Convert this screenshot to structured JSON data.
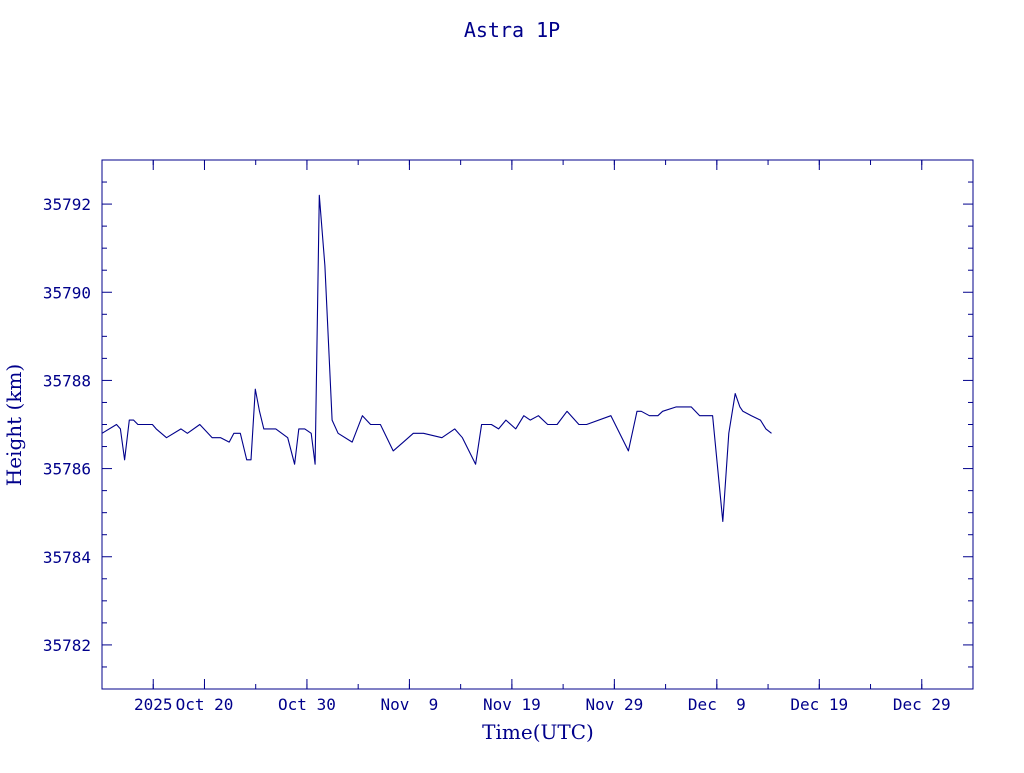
{
  "chart_data": {
    "type": "line",
    "title": "Astra 1P",
    "xlabel": "Time(UTC)",
    "ylabel": "Height (km)",
    "xlim": [
      "2025-10-10",
      "2026-01-03"
    ],
    "ylim": [
      35781,
      35793
    ],
    "grid": false,
    "y_ticks": [
      35782,
      35784,
      35786,
      35788,
      35790,
      35792
    ],
    "y_tick_labels": [
      "35782",
      "35784",
      "35786",
      "35788",
      "35790",
      "35792"
    ],
    "x_ticks": [
      "2025-10-15",
      "2025-10-20",
      "2025-10-30",
      "2025-11-09",
      "2025-11-19",
      "2025-11-29",
      "2025-12-09",
      "2025-12-19",
      "2025-12-29"
    ],
    "x_tick_labels": [
      "2025",
      "Oct 20",
      "Oct 30",
      "Nov  9",
      "Nov 19",
      "Nov 29",
      "Dec  9",
      "Dec 19",
      "Dec 29"
    ],
    "series": [
      {
        "color": "#00008b",
        "x": [
          "2025-10-10T00:00",
          "2025-10-11T10:00",
          "2025-10-11T19:00",
          "2025-10-12T05:00",
          "2025-10-12T16:00",
          "2025-10-13T02:00",
          "2025-10-13T12:00",
          "2025-10-14T22:00",
          "2025-10-15T07:00",
          "2025-10-16T07:00",
          "2025-10-17T17:00",
          "2025-10-18T08:00",
          "2025-10-19T13:00",
          "2025-10-20T18:00",
          "2025-10-21T14:00",
          "2025-10-22T10:00",
          "2025-10-22T21:00",
          "2025-10-23T12:00",
          "2025-10-24T03:00",
          "2025-10-24T13:00",
          "2025-10-24T23:00",
          "2025-10-25T09:00",
          "2025-10-25T19:00",
          "2025-10-26T09:00",
          "2025-10-26T23:00",
          "2025-10-28T03:00",
          "2025-10-28T19:00",
          "2025-10-29T05:00",
          "2025-10-29T19:00",
          "2025-10-30T10:00",
          "2025-10-30T19:00",
          "2025-10-31T05:00",
          "2025-10-31T18:00",
          "2025-11-01T11:00",
          "2025-11-02T01:00",
          "2025-11-03T10:00",
          "2025-11-04T10:00",
          "2025-11-05T05:00",
          "2025-11-06T04:00",
          "2025-11-07T10:00",
          "2025-11-08T10:00",
          "2025-11-09T09:00",
          "2025-11-10T09:00",
          "2025-11-12T04:00",
          "2025-11-13T10:00",
          "2025-11-14T04:00",
          "2025-11-15T11:00",
          "2025-11-16T01:00",
          "2025-11-17T00:00",
          "2025-11-17T17:00",
          "2025-11-18T10:00",
          "2025-11-19T09:00",
          "2025-11-20T04:00",
          "2025-11-20T19:00",
          "2025-11-21T14:00",
          "2025-11-22T12:00",
          "2025-11-23T10:00",
          "2025-11-24T09:00",
          "2025-11-25T13:00",
          "2025-11-26T07:00",
          "2025-11-28T16:00",
          "2025-11-30T09:00",
          "2025-12-01T05:00",
          "2025-12-01T15:00",
          "2025-12-02T10:00",
          "2025-12-03T06:00",
          "2025-12-03T17:00",
          "2025-12-05T01:00",
          "2025-12-06T12:00",
          "2025-12-07T08:00",
          "2025-12-08T14:00",
          "2025-12-09T14:00",
          "2025-12-10T04:00",
          "2025-12-10T19:00",
          "2025-12-11T06:00",
          "2025-12-11T13:00",
          "2025-12-12T09:00",
          "2025-12-13T06:00",
          "2025-12-13T19:00",
          "2025-12-14T08:00"
        ],
        "values": [
          35786.8,
          35787.0,
          35786.9,
          35786.2,
          35787.1,
          35787.1,
          35787.0,
          35787.0,
          35786.9,
          35786.7,
          35786.9,
          35786.8,
          35787.0,
          35786.7,
          35786.7,
          35786.6,
          35786.8,
          35786.8,
          35786.2,
          35786.2,
          35787.8,
          35787.3,
          35786.9,
          35786.9,
          35786.9,
          35786.7,
          35786.1,
          35786.9,
          35786.9,
          35786.8,
          35786.1,
          35792.2,
          35790.6,
          35787.1,
          35786.8,
          35786.6,
          35787.2,
          35787.0,
          35787.0,
          35786.4,
          35786.6,
          35786.8,
          35786.8,
          35786.7,
          35786.9,
          35786.7,
          35786.1,
          35787.0,
          35787.0,
          35786.9,
          35787.1,
          35786.9,
          35787.2,
          35787.1,
          35787.2,
          35787.0,
          35787.0,
          35787.3,
          35787.0,
          35787.0,
          35787.2,
          35786.4,
          35787.3,
          35787.3,
          35787.2,
          35787.2,
          35787.3,
          35787.4,
          35787.4,
          35787.2,
          35787.2,
          35784.8,
          35786.8,
          35787.7,
          35787.4,
          35787.3,
          35787.2,
          35787.1,
          35786.9,
          35786.8
        ]
      }
    ]
  }
}
